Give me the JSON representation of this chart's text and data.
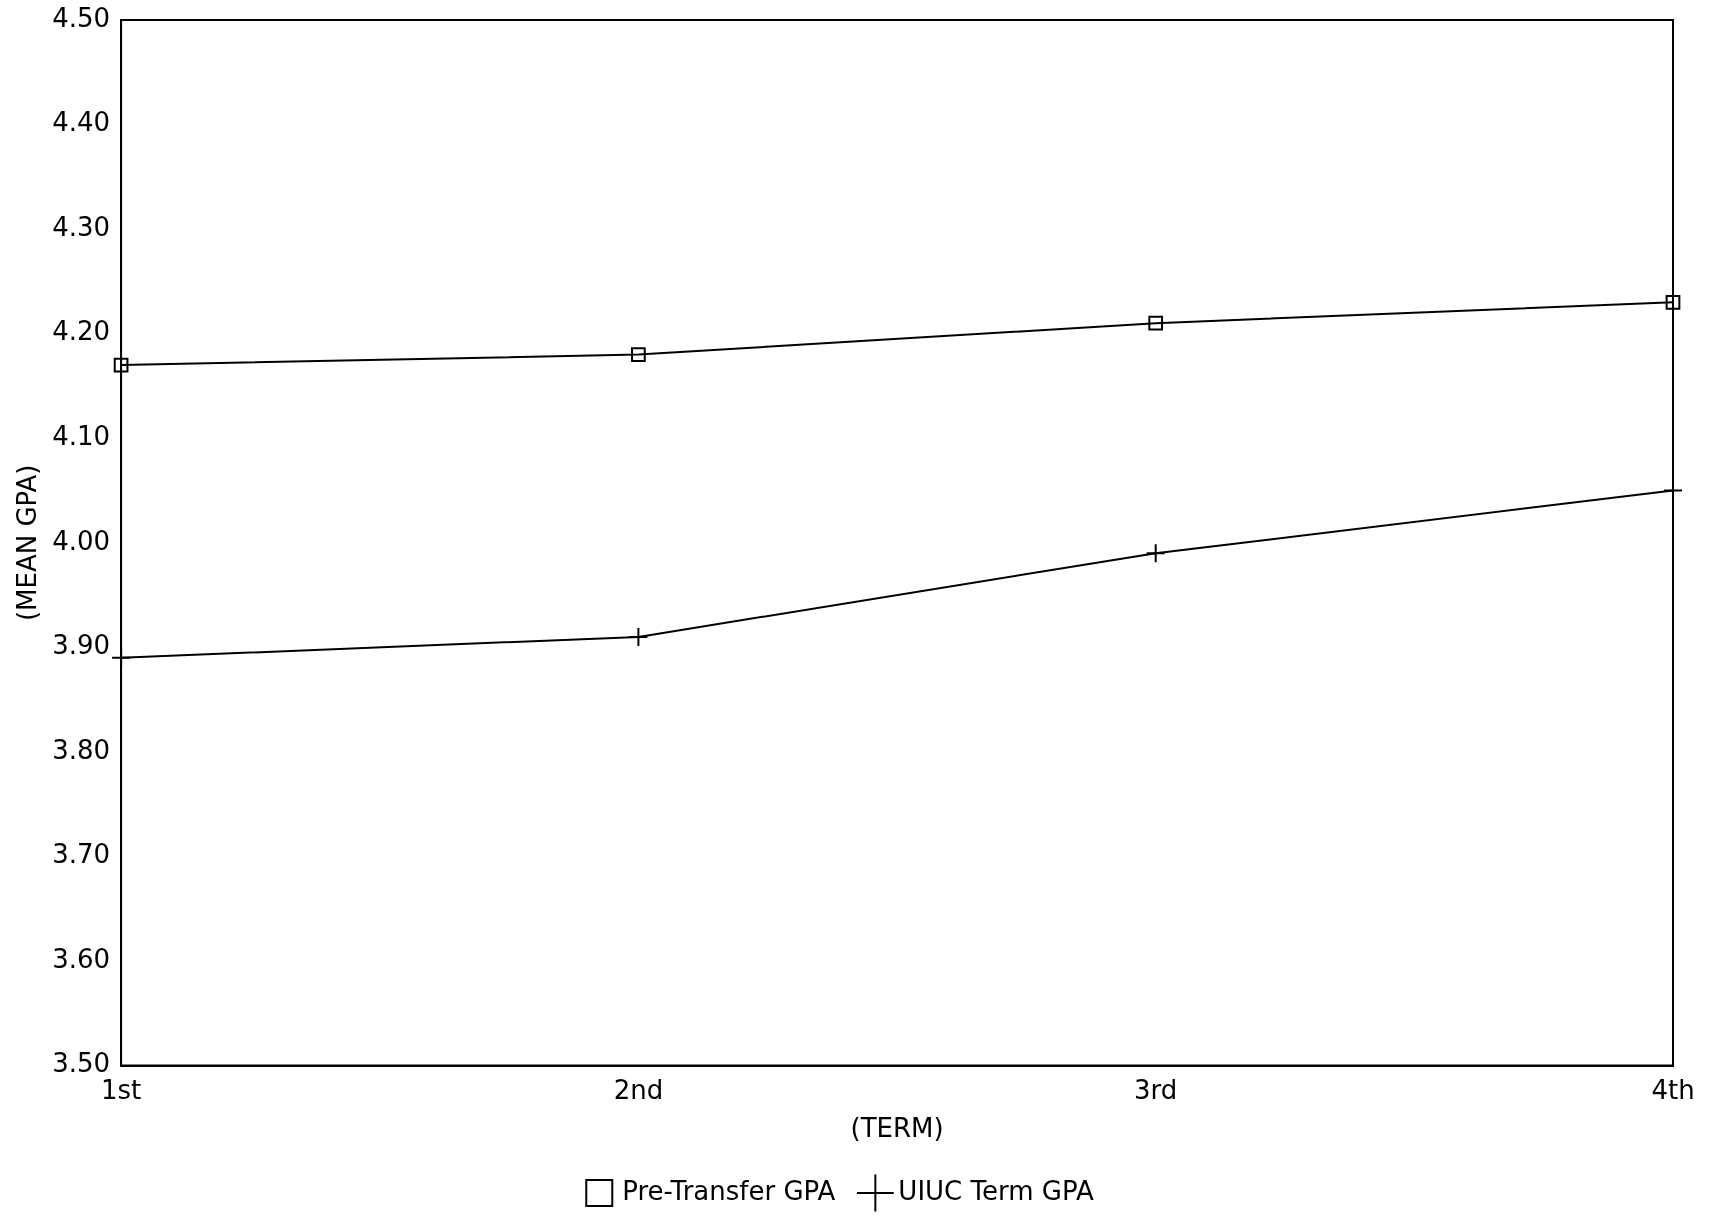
{
  "chart_data": {
    "type": "line",
    "xlabel": "(TERM)",
    "ylabel": "(MEAN GPA)",
    "categories": [
      "1st",
      "2nd",
      "3rd",
      "4th"
    ],
    "series": [
      {
        "name": "Pre-Transfer GPA",
        "color": "#000000",
        "marker": "square",
        "values": [
          4.17,
          4.18,
          4.21,
          4.23
        ]
      },
      {
        "name": "UIUC Term GPA",
        "color": "#000000",
        "marker": "cross",
        "values": [
          3.89,
          3.91,
          3.99,
          4.05
        ]
      }
    ],
    "ylim": [
      3.5,
      4.5
    ],
    "yticks": [
      {
        "value": 3.5,
        "label": "3.50"
      },
      {
        "value": 3.6,
        "label": "3.60"
      },
      {
        "value": 3.7,
        "label": "3.70"
      },
      {
        "value": 3.8,
        "label": "3.80"
      },
      {
        "value": 3.9,
        "label": "3.90"
      },
      {
        "value": 4.0,
        "label": "4.00"
      },
      {
        "value": 4.1,
        "label": "4.10"
      },
      {
        "value": 4.2,
        "label": "4.20"
      },
      {
        "value": 4.3,
        "label": "4.30"
      },
      {
        "value": 4.4,
        "label": "4.40"
      },
      {
        "value": 4.5,
        "label": "4.50"
      }
    ],
    "grid": false,
    "legend": "bottom",
    "line_style": "solid"
  }
}
